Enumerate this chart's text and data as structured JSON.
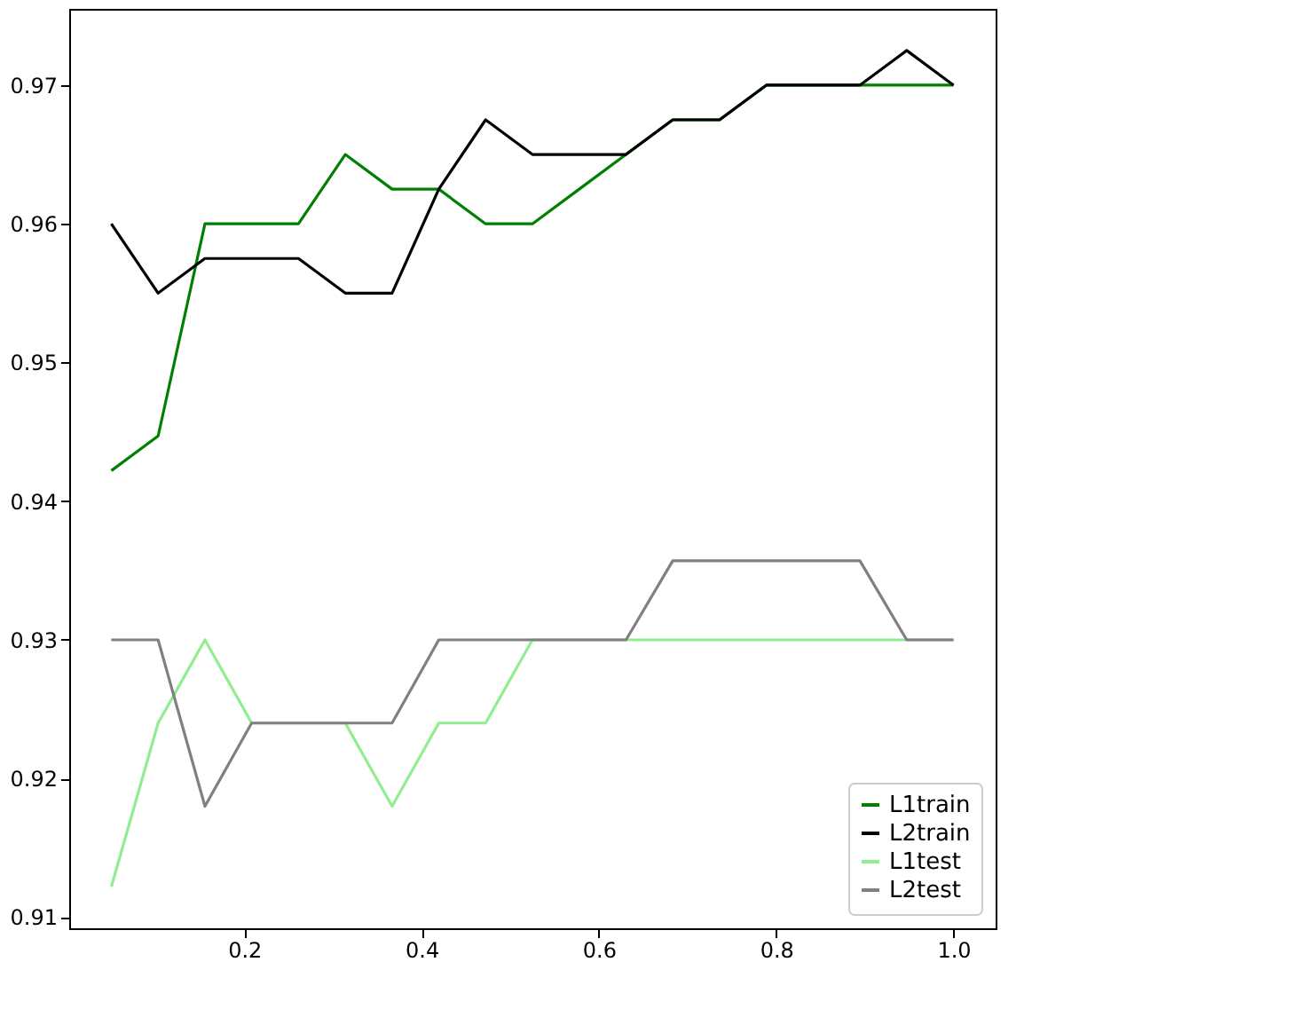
{
  "chart_data": {
    "type": "line",
    "x": [
      0.05,
      0.1028,
      0.1556,
      0.2083,
      0.2611,
      0.3139,
      0.3667,
      0.4194,
      0.4722,
      0.525,
      0.5778,
      0.6306,
      0.6833,
      0.7361,
      0.7889,
      0.8417,
      0.8944,
      0.9472,
      1.0
    ],
    "series": [
      {
        "name": "L1train",
        "color": "#008000",
        "values": [
          0.9422,
          0.9447,
          0.96,
          0.96,
          0.96,
          0.965,
          0.9625,
          0.9625,
          0.96,
          0.96,
          0.9625,
          0.965,
          0.9675,
          0.9675,
          0.97,
          0.97,
          0.97,
          0.97,
          0.97
        ]
      },
      {
        "name": "L2train",
        "color": "#000000",
        "values": [
          0.96,
          0.955,
          0.9575,
          0.9575,
          0.9575,
          0.955,
          0.955,
          0.9625,
          0.9675,
          0.965,
          0.965,
          0.965,
          0.9675,
          0.9675,
          0.97,
          0.97,
          0.97,
          0.9725,
          0.97
        ]
      },
      {
        "name": "L1test",
        "color": "#90ee90",
        "values": [
          0.9122,
          0.924,
          0.93,
          0.924,
          0.924,
          0.924,
          0.918,
          0.924,
          0.924,
          0.93,
          0.93,
          0.93,
          0.93,
          0.93,
          0.93,
          0.93,
          0.93,
          0.93,
          0.93
        ]
      },
      {
        "name": "L2test",
        "color": "#808080",
        "values": [
          0.93,
          0.93,
          0.918,
          0.924,
          0.924,
          0.924,
          0.924,
          0.93,
          0.93,
          0.93,
          0.93,
          0.93,
          0.9357,
          0.9357,
          0.9357,
          0.9357,
          0.9357,
          0.93,
          0.93
        ]
      }
    ],
    "xlim": [
      0.0025,
      1.0475
    ],
    "ylim": [
      0.9092,
      0.9755
    ],
    "xticks": [
      {
        "value": 0.2,
        "label": "0.2"
      },
      {
        "value": 0.4,
        "label": "0.4"
      },
      {
        "value": 0.6,
        "label": "0.6"
      },
      {
        "value": 0.8,
        "label": "0.8"
      },
      {
        "value": 1,
        "label": "1.0"
      }
    ],
    "yticks": [
      0.91,
      0.92,
      0.93,
      0.94,
      0.95,
      0.96,
      0.97
    ],
    "legend": "bottom right",
    "grid": false,
    "marker": "none",
    "line_style": "solid"
  }
}
